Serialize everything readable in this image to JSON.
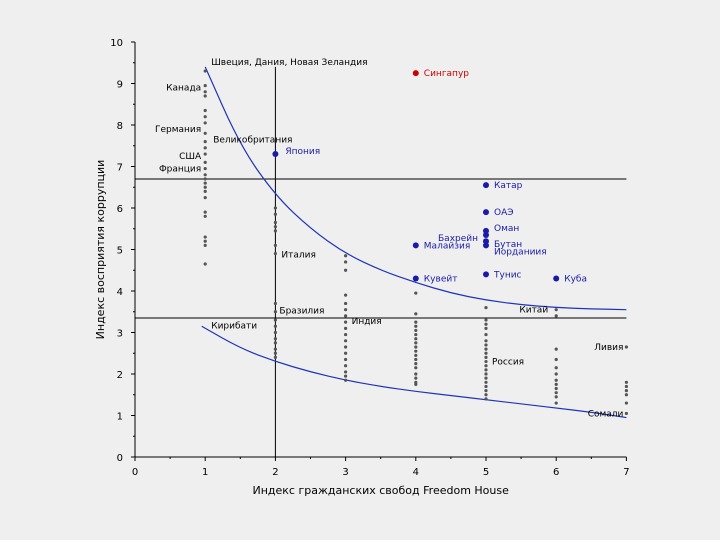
{
  "chart_data": {
    "type": "scatter",
    "title": "",
    "xlabel": "Индекс гражданских свобод Freedom House",
    "ylabel": "Индекс восприятия коррупции",
    "xlim": [
      0,
      7
    ],
    "ylim": [
      0,
      10
    ],
    "xticks": [
      "0",
      "1",
      "2",
      "3",
      "4",
      "5",
      "6",
      "7"
    ],
    "yticks": [
      "0",
      "1",
      "2",
      "3",
      "4",
      "5",
      "6",
      "7",
      "8",
      "9",
      "10"
    ],
    "reference_lines": {
      "vertical_x": 2,
      "horizontal_y": [
        6.7,
        3.35
      ]
    },
    "curves": [
      {
        "name": "upper",
        "points": [
          [
            1,
            9.4
          ],
          [
            1.5,
            7.5
          ],
          [
            2,
            6.3
          ],
          [
            2.5,
            5.5
          ],
          [
            3,
            4.9
          ],
          [
            3.5,
            4.5
          ],
          [
            4,
            4.2
          ],
          [
            4.5,
            3.95
          ],
          [
            5,
            3.78
          ],
          [
            5.5,
            3.67
          ],
          [
            6,
            3.6
          ],
          [
            6.5,
            3.57
          ],
          [
            7,
            3.55
          ]
        ]
      },
      {
        "name": "lower",
        "points": [
          [
            0.95,
            3.15
          ],
          [
            1.5,
            2.62
          ],
          [
            2,
            2.3
          ],
          [
            2.5,
            2.05
          ],
          [
            3,
            1.85
          ],
          [
            3.5,
            1.7
          ],
          [
            4,
            1.58
          ],
          [
            4.5,
            1.48
          ],
          [
            5,
            1.38
          ],
          [
            5.5,
            1.28
          ],
          [
            6,
            1.18
          ],
          [
            6.5,
            1.08
          ],
          [
            7,
            0.95
          ]
        ]
      }
    ],
    "gray_points": {
      "x1": [
        9.3,
        8.95,
        8.8,
        8.7,
        8.35,
        8.2,
        8.05,
        7.8,
        7.6,
        7.45,
        7.3,
        7.1,
        6.95,
        6.8,
        6.7,
        6.6,
        6.5,
        6.4,
        6.25,
        5.9,
        5.8,
        5.3,
        5.2,
        5.1,
        4.65
      ],
      "x2": [
        6.0,
        5.85,
        5.65,
        5.55,
        5.45,
        5.1,
        4.9,
        3.7,
        3.5,
        3.3,
        3.15,
        3.0,
        2.85,
        2.75,
        2.6,
        2.5,
        2.4
      ],
      "x3": [
        4.85,
        4.7,
        4.5,
        3.9,
        3.7,
        3.55,
        3.4,
        3.25,
        3.1,
        2.95,
        2.8,
        2.65,
        2.5,
        2.35,
        2.2,
        2.05,
        1.95,
        1.85
      ],
      "x4": [
        3.95,
        3.45,
        3.25,
        3.15,
        3.05,
        2.95,
        2.85,
        2.75,
        2.65,
        2.55,
        2.45,
        2.35,
        2.25,
        2.15,
        2.0,
        1.9,
        1.8,
        1.75
      ],
      "x5": [
        3.6,
        3.3,
        3.2,
        3.1,
        2.95,
        2.8,
        2.7,
        2.6,
        2.5,
        2.4,
        2.3,
        2.2,
        2.1,
        2.0,
        1.9,
        1.8,
        1.7,
        1.6,
        1.5,
        1.4
      ],
      "x6": [
        3.55,
        3.4,
        2.6,
        2.35,
        2.15,
        2.0,
        1.85,
        1.75,
        1.65,
        1.55,
        1.45,
        1.3
      ],
      "x7": [
        2.65,
        1.8,
        1.7,
        1.6,
        1.5,
        1.3,
        1.05
      ]
    },
    "labeled_points": [
      {
        "name": "Швеция, Дания, Новая Зеландия",
        "x": 1,
        "y": 9.4,
        "color": "gray"
      },
      {
        "name": "Канада",
        "x": 1,
        "y": 8.9,
        "color": "gray"
      },
      {
        "name": "Германия",
        "x": 1,
        "y": 7.9,
        "color": "gray"
      },
      {
        "name": "Великобритания",
        "x": 1,
        "y": 7.75,
        "color": "gray"
      },
      {
        "name": "США",
        "x": 1,
        "y": 7.25,
        "color": "gray"
      },
      {
        "name": "Франция",
        "x": 1,
        "y": 6.95,
        "color": "gray"
      },
      {
        "name": "Япония",
        "x": 2,
        "y": 7.3,
        "color": "blue"
      },
      {
        "name": "Сингапур",
        "x": 4,
        "y": 9.25,
        "color": "red"
      },
      {
        "name": "Катар",
        "x": 5,
        "y": 6.55,
        "color": "blue"
      },
      {
        "name": "ОАЭ",
        "x": 5,
        "y": 5.9,
        "color": "blue"
      },
      {
        "name": "Оман",
        "x": 5,
        "y": 5.45,
        "color": "blue"
      },
      {
        "name": "Бахрейн",
        "x": 5,
        "y": 5.35,
        "color": "blue"
      },
      {
        "name": "Бутан",
        "x": 5,
        "y": 5.2,
        "color": "blue"
      },
      {
        "name": "Иорданиия",
        "x": 5,
        "y": 5.1,
        "color": "blue"
      },
      {
        "name": "Малайзия",
        "x": 4,
        "y": 5.1,
        "color": "blue"
      },
      {
        "name": "Кувейт",
        "x": 4,
        "y": 4.3,
        "color": "blue"
      },
      {
        "name": "Тунис",
        "x": 5,
        "y": 4.4,
        "color": "blue"
      },
      {
        "name": "Куба",
        "x": 6,
        "y": 4.3,
        "color": "blue"
      },
      {
        "name": "Италия",
        "x": 2,
        "y": 4.95,
        "color": "gray"
      },
      {
        "name": "Бразилия",
        "x": 2,
        "y": 3.6,
        "color": "gray"
      },
      {
        "name": "Индия",
        "x": 3,
        "y": 3.5,
        "color": "gray"
      },
      {
        "name": "Китай",
        "x": 6,
        "y": 3.55,
        "color": "gray"
      },
      {
        "name": "Кирибати",
        "x": 1,
        "y": 3.15,
        "color": "gray"
      },
      {
        "name": "Ливия",
        "x": 7,
        "y": 2.65,
        "color": "gray"
      },
      {
        "name": "Россия",
        "x": 5,
        "y": 2.3,
        "color": "gray"
      },
      {
        "name": "Сомали",
        "x": 7,
        "y": 1.05,
        "color": "gray"
      }
    ]
  }
}
